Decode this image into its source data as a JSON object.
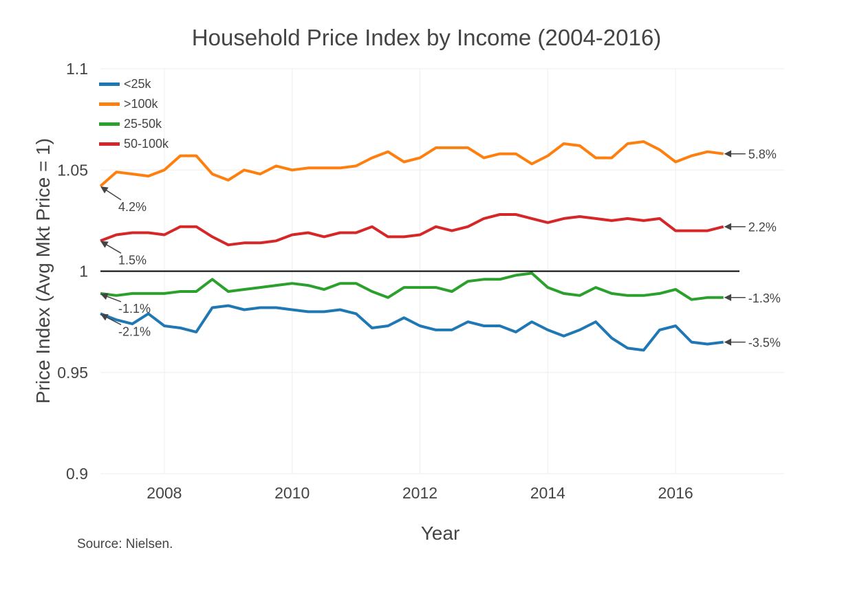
{
  "chart_data": {
    "type": "line",
    "title": "Household Price Index by Income (2004-2016)",
    "xlabel": "Year",
    "ylabel": "Price Index (Avg Mkt Price = 1)",
    "source": "Source: Nielsen.",
    "xlim": [
      2007.0,
      2017.7
    ],
    "ylim": [
      0.9,
      1.1
    ],
    "x_ticks": [
      2008,
      2010,
      2012,
      2014,
      2016
    ],
    "x_tick_labels": [
      "2008",
      "2010",
      "2012",
      "2014",
      "2016"
    ],
    "y_ticks": [
      0.9,
      0.95,
      1.0,
      1.05,
      1.1
    ],
    "y_tick_labels": [
      "0.9",
      "0.95",
      "1",
      "1.05",
      "1.1"
    ],
    "grid": true,
    "reference_line": {
      "y": 1.0,
      "x": [
        2007.0,
        2017.0
      ],
      "color": "#000000"
    },
    "legend_position": "top-left",
    "x": [
      2007.0,
      2007.25,
      2007.5,
      2007.75,
      2008.0,
      2008.25,
      2008.5,
      2008.75,
      2009.0,
      2009.25,
      2009.5,
      2009.75,
      2010.0,
      2010.25,
      2010.5,
      2010.75,
      2011.0,
      2011.25,
      2011.5,
      2011.75,
      2012.0,
      2012.25,
      2012.5,
      2012.75,
      2013.0,
      2013.25,
      2013.5,
      2013.75,
      2014.0,
      2014.25,
      2014.5,
      2014.75,
      2015.0,
      2015.25,
      2015.5,
      2015.75,
      2016.0,
      2016.25,
      2016.5,
      2016.75
    ],
    "series": [
      {
        "name": "<25k",
        "color": "#1f77b4",
        "values": [
          0.979,
          0.976,
          0.974,
          0.979,
          0.973,
          0.972,
          0.97,
          0.982,
          0.983,
          0.981,
          0.982,
          0.982,
          0.981,
          0.98,
          0.98,
          0.981,
          0.979,
          0.972,
          0.973,
          0.977,
          0.973,
          0.971,
          0.971,
          0.975,
          0.973,
          0.973,
          0.97,
          0.975,
          0.971,
          0.968,
          0.971,
          0.975,
          0.967,
          0.962,
          0.961,
          0.971,
          0.973,
          0.965,
          0.964,
          0.965
        ],
        "start_label": "-2.1%",
        "end_label": "-3.5%"
      },
      {
        "name": ">100k",
        "color": "#ff7f0e",
        "values": [
          1.042,
          1.049,
          1.048,
          1.047,
          1.05,
          1.057,
          1.057,
          1.048,
          1.045,
          1.05,
          1.048,
          1.052,
          1.05,
          1.051,
          1.051,
          1.051,
          1.052,
          1.056,
          1.059,
          1.054,
          1.056,
          1.061,
          1.061,
          1.061,
          1.056,
          1.058,
          1.058,
          1.053,
          1.057,
          1.063,
          1.062,
          1.056,
          1.056,
          1.063,
          1.064,
          1.06,
          1.054,
          1.057,
          1.059,
          1.058
        ],
        "start_label": "4.2%",
        "end_label": "5.8%"
      },
      {
        "name": "25-50k",
        "color": "#2ca02c",
        "values": [
          0.989,
          0.988,
          0.989,
          0.989,
          0.989,
          0.99,
          0.99,
          0.996,
          0.99,
          0.991,
          0.992,
          0.993,
          0.994,
          0.993,
          0.991,
          0.994,
          0.994,
          0.99,
          0.987,
          0.992,
          0.992,
          0.992,
          0.99,
          0.995,
          0.996,
          0.996,
          0.998,
          0.999,
          0.992,
          0.989,
          0.988,
          0.992,
          0.989,
          0.988,
          0.988,
          0.989,
          0.991,
          0.986,
          0.987,
          0.987
        ],
        "start_label": "-1.1%",
        "end_label": "-1.3%"
      },
      {
        "name": "50-100k",
        "color": "#d62728",
        "values": [
          1.015,
          1.018,
          1.019,
          1.019,
          1.018,
          1.022,
          1.022,
          1.017,
          1.013,
          1.014,
          1.014,
          1.015,
          1.018,
          1.019,
          1.017,
          1.019,
          1.019,
          1.022,
          1.017,
          1.017,
          1.018,
          1.022,
          1.02,
          1.022,
          1.026,
          1.028,
          1.028,
          1.026,
          1.024,
          1.026,
          1.027,
          1.026,
          1.025,
          1.026,
          1.025,
          1.026,
          1.02,
          1.02,
          1.02,
          1.022
        ],
        "start_label": "1.5%",
        "end_label": "2.2%"
      }
    ]
  }
}
